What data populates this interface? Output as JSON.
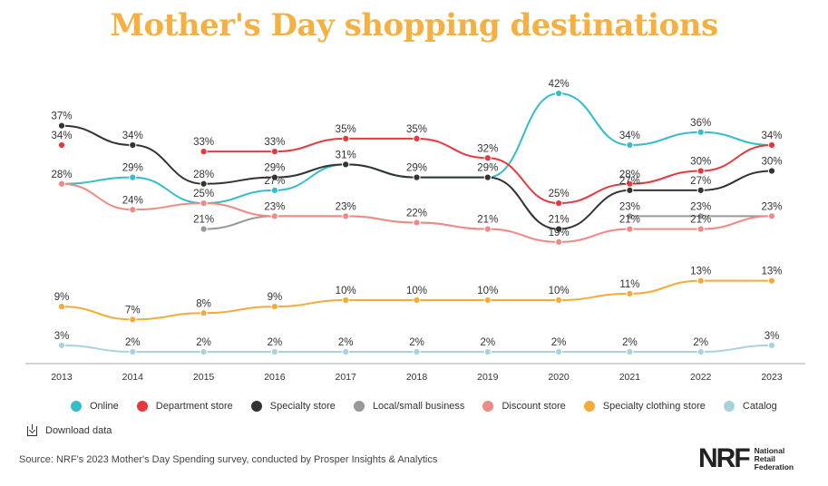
{
  "title": "Mother's Day shopping destinations",
  "download_label": "Download data",
  "source": "Source: NRF's 2023 Mother's Day Spending survey, conducted by Prosper Insights & Analytics",
  "logo": {
    "mark": "NRF",
    "line1": "National",
    "line2": "Retail",
    "line3": "Federation"
  },
  "colors": {
    "title": "#f5b041",
    "axis": "#aaaaaa",
    "label": "#333333"
  },
  "chart_data": {
    "type": "line",
    "title": "Mother's Day shopping destinations",
    "x": [
      "2013",
      "2014",
      "2015",
      "2016",
      "2017",
      "2018",
      "2019",
      "2020",
      "2021",
      "2022",
      "2023"
    ],
    "ylim": [
      0,
      45
    ],
    "grid": false,
    "legend_position": "bottom",
    "series": [
      {
        "name": "Online",
        "color": "#35bdc9",
        "values": [
          28,
          29,
          25,
          27,
          31,
          29,
          29,
          42,
          34,
          36,
          34
        ],
        "labels": [
          null,
          "29%",
          "25%",
          "27%",
          null,
          "29%",
          "29%",
          "42%",
          "34%",
          "36%",
          null
        ]
      },
      {
        "name": "Department store",
        "color": "#e8383d",
        "values": [
          34,
          null,
          33,
          33,
          35,
          35,
          32,
          25,
          28,
          30,
          34
        ],
        "labels": [
          "34%",
          null,
          "33%",
          "33%",
          "35%",
          "35%",
          "32%",
          "25%",
          "28%",
          "30%",
          "34%"
        ]
      },
      {
        "name": "Specialty store",
        "color": "#333333",
        "values": [
          37,
          34,
          28,
          29,
          31,
          29,
          29,
          21,
          27,
          27,
          30
        ],
        "labels": [
          "37%",
          "34%",
          "28%",
          "29%",
          "31%",
          null,
          null,
          "21%",
          "27%",
          "27%",
          "30%"
        ]
      },
      {
        "name": "Local/small business",
        "color": "#999999",
        "values": [
          null,
          null,
          21,
          23,
          23,
          22,
          21,
          null,
          23,
          23,
          23
        ],
        "labels": [
          null,
          null,
          "21%",
          "23%",
          "23%",
          "22%",
          "21%",
          null,
          "23%",
          "23%",
          null
        ]
      },
      {
        "name": "Discount store",
        "color": "#f08a85",
        "values": [
          28,
          24,
          25,
          23,
          23,
          22,
          21,
          19,
          21,
          21,
          23
        ],
        "labels": [
          "28%",
          "24%",
          null,
          null,
          null,
          null,
          null,
          "19%",
          "21%",
          "21%",
          "23%"
        ]
      },
      {
        "name": "Specialty clothing store",
        "color": "#f5ab35",
        "values": [
          9,
          7,
          8,
          9,
          10,
          10,
          10,
          10,
          11,
          13,
          13
        ],
        "labels": [
          "9%",
          "7%",
          "8%",
          "9%",
          "10%",
          "10%",
          "10%",
          "10%",
          "11%",
          "13%",
          "13%"
        ]
      },
      {
        "name": "Catalog",
        "color": "#a8d3dc",
        "values": [
          3,
          2,
          2,
          2,
          2,
          2,
          2,
          2,
          2,
          2,
          3
        ],
        "labels": [
          "3%",
          "2%",
          "2%",
          "2%",
          "2%",
          "2%",
          "2%",
          "2%",
          "2%",
          "2%",
          "3%"
        ]
      }
    ]
  }
}
